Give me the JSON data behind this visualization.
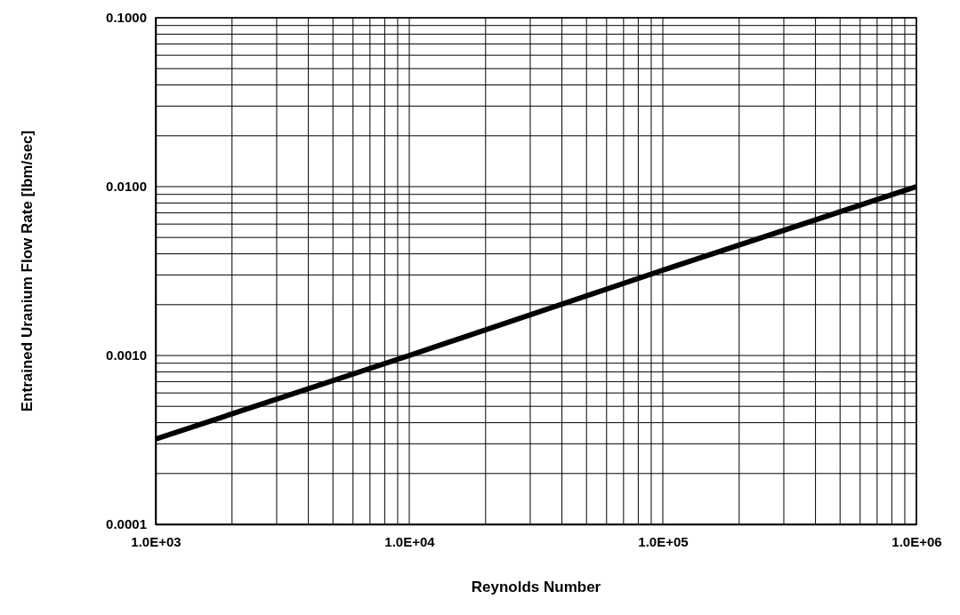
{
  "chart_data": {
    "type": "line",
    "xlabel": "Reynolds Number",
    "ylabel": "Entrained Uranium Flow Rate [lbm/sec]",
    "x": [
      1000,
      10000,
      100000,
      1000000
    ],
    "series": [
      {
        "color": "#000000",
        "values": [
          0.00032,
          0.001,
          0.0032,
          0.01
        ]
      }
    ],
    "log": "xy",
    "grid": true,
    "marker": "none",
    "line_style": "solid",
    "xlim": [
      1000,
      1000000
    ],
    "ylim": [
      0.0001,
      0.1
    ],
    "xticks": [
      {
        "value": 1000,
        "label": "1.0E+03"
      },
      {
        "value": 2000,
        "label": null
      },
      {
        "value": 3000,
        "label": null
      },
      {
        "value": 4000,
        "label": null
      },
      {
        "value": 5000,
        "label": null
      },
      {
        "value": 6000,
        "label": null
      },
      {
        "value": 7000,
        "label": null
      },
      {
        "value": 8000,
        "label": null
      },
      {
        "value": 9000,
        "label": null
      },
      {
        "value": 10000,
        "label": "1.0E+04"
      },
      {
        "value": 20000,
        "label": null
      },
      {
        "value": 30000,
        "label": null
      },
      {
        "value": 40000,
        "label": null
      },
      {
        "value": 50000,
        "label": null
      },
      {
        "value": 60000,
        "label": null
      },
      {
        "value": 70000,
        "label": null
      },
      {
        "value": 80000,
        "label": null
      },
      {
        "value": 90000,
        "label": null
      },
      {
        "value": 100000,
        "label": "1.0E+05"
      },
      {
        "value": 200000,
        "label": null
      },
      {
        "value": 300000,
        "label": null
      },
      {
        "value": 400000,
        "label": null
      },
      {
        "value": 500000,
        "label": null
      },
      {
        "value": 600000,
        "label": null
      },
      {
        "value": 700000,
        "label": null
      },
      {
        "value": 800000,
        "label": null
      },
      {
        "value": 900000,
        "label": null
      },
      {
        "value": 1000000,
        "label": "1.0E+06"
      }
    ],
    "yticks": [
      {
        "value": 0.0001,
        "label": "0.0001"
      },
      {
        "value": 0.0002,
        "label": null
      },
      {
        "value": 0.0003,
        "label": null
      },
      {
        "value": 0.0004,
        "label": null
      },
      {
        "value": 0.0005,
        "label": null
      },
      {
        "value": 0.0006,
        "label": null
      },
      {
        "value": 0.0007,
        "label": null
      },
      {
        "value": 0.0008,
        "label": null
      },
      {
        "value": 0.0009,
        "label": null
      },
      {
        "value": 0.001,
        "label": "0.0010"
      },
      {
        "value": 0.002,
        "label": null
      },
      {
        "value": 0.003,
        "label": null
      },
      {
        "value": 0.004,
        "label": null
      },
      {
        "value": 0.005,
        "label": null
      },
      {
        "value": 0.006,
        "label": null
      },
      {
        "value": 0.007,
        "label": null
      },
      {
        "value": 0.008,
        "label": null
      },
      {
        "value": 0.009,
        "label": null
      },
      {
        "value": 0.01,
        "label": "0.0100"
      },
      {
        "value": 0.02,
        "label": null
      },
      {
        "value": 0.03,
        "label": null
      },
      {
        "value": 0.04,
        "label": null
      },
      {
        "value": 0.05,
        "label": null
      },
      {
        "value": 0.06,
        "label": null
      },
      {
        "value": 0.07,
        "label": null
      },
      {
        "value": 0.08,
        "label": null
      },
      {
        "value": 0.09,
        "label": null
      },
      {
        "value": 0.1,
        "label": "0.1000"
      }
    ]
  }
}
